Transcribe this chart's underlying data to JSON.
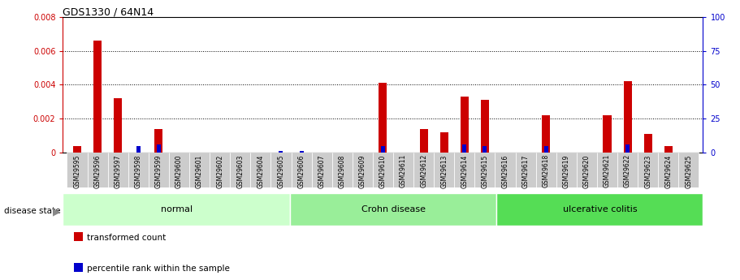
{
  "title": "GDS1330 / 64N14",
  "samples": [
    "GSM29595",
    "GSM29596",
    "GSM29597",
    "GSM29598",
    "GSM29599",
    "GSM29600",
    "GSM29601",
    "GSM29602",
    "GSM29603",
    "GSM29604",
    "GSM29605",
    "GSM29606",
    "GSM29607",
    "GSM29608",
    "GSM29609",
    "GSM29610",
    "GSM29611",
    "GSM29612",
    "GSM29613",
    "GSM29614",
    "GSM29615",
    "GSM29616",
    "GSM29617",
    "GSM29618",
    "GSM29619",
    "GSM29620",
    "GSM29621",
    "GSM29622",
    "GSM29623",
    "GSM29624",
    "GSM29625"
  ],
  "transformed_count": [
    0.0004,
    0.0066,
    0.0032,
    0.0,
    0.0014,
    0.0,
    0.0,
    0.0,
    0.0,
    0.0,
    0.0,
    0.0,
    0.0,
    0.0,
    0.0,
    0.0041,
    0.0,
    0.0014,
    0.0012,
    0.0033,
    0.0031,
    0.0,
    0.0,
    0.0022,
    0.0,
    0.0,
    0.0022,
    0.0042,
    0.0011,
    0.0004,
    0.0
  ],
  "percentile_rank_right": [
    0.0,
    0.0,
    0.0,
    5.0,
    6.0,
    0.0,
    0.0,
    0.0,
    0.0,
    0.0,
    1.0,
    1.0,
    0.0,
    0.0,
    0.0,
    5.0,
    0.0,
    0.0,
    0.0,
    6.0,
    5.0,
    0.0,
    0.0,
    5.0,
    0.0,
    0.0,
    0.0,
    6.0,
    0.0,
    0.0,
    0.0
  ],
  "disease_groups": [
    {
      "label": "normal",
      "start": 0,
      "end": 11,
      "color": "#ccffcc"
    },
    {
      "label": "Crohn disease",
      "start": 11,
      "end": 21,
      "color": "#99ee99"
    },
    {
      "label": "ulcerative colitis",
      "start": 21,
      "end": 31,
      "color": "#55dd55"
    }
  ],
  "ylim_left": [
    0.0,
    0.008
  ],
  "ylim_right": [
    0.0,
    100.0
  ],
  "yticks_left": [
    0.0,
    0.002,
    0.004,
    0.006,
    0.008
  ],
  "yticks_right": [
    0,
    25,
    50,
    75,
    100
  ],
  "left_axis_color": "#cc0000",
  "right_axis_color": "#0000cc",
  "bar_color_red": "#cc0000",
  "bar_color_blue": "#0000cc",
  "label_bg_color": "#cccccc",
  "bar_width": 0.4
}
